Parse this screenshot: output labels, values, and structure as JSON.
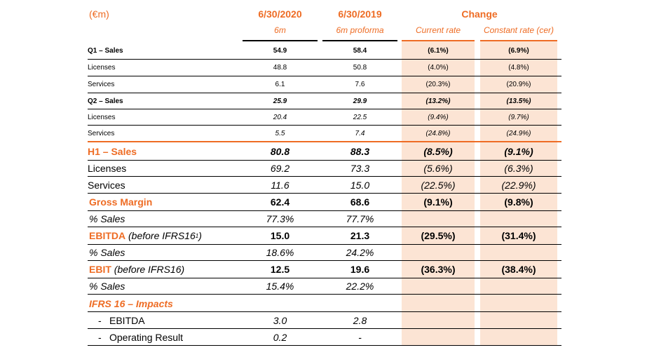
{
  "header": {
    "unit": "(€m)",
    "col1": "6/30/2020",
    "col2": "6/30/2019",
    "change": "Change",
    "col1_sub": "6m",
    "col2_sub": "6m proforma",
    "col3_sub": "Current rate",
    "col4_sub": "Constant rate (cer)"
  },
  "rows": [
    {
      "label": "Q1 – Sales",
      "c1": "54.9",
      "c2": "58.4",
      "c3": "(6.1%)",
      "c4": "(6.9%)"
    },
    {
      "label": "Licenses",
      "c1": "48.8",
      "c2": "50.8",
      "c3": "(4.0%)",
      "c4": "(4.8%)"
    },
    {
      "label": "Services",
      "c1": "6.1",
      "c2": "7.6",
      "c3": "(20.3%)",
      "c4": "(20.9%)"
    },
    {
      "label": "Q2 – Sales",
      "c1": "25.9",
      "c2": "29.9",
      "c3": "(13.2%)",
      "c4": "(13.5%)"
    },
    {
      "label": "Licenses",
      "c1": "20.4",
      "c2": "22.5",
      "c3": "(9.4%)",
      "c4": "(9.7%)"
    },
    {
      "label": "Services",
      "c1": "5.5",
      "c2": "7.4",
      "c3": "(24.8%)",
      "c4": "(24.9%)"
    },
    {
      "label": "H1 – Sales",
      "c1": "80.8",
      "c2": "88.3",
      "c3": "(8.5%)",
      "c4": "(9.1%)"
    },
    {
      "label": "Licenses",
      "c1": "69.2",
      "c2": "73.3",
      "c3": "(5.6%)",
      "c4": "(6.3%)"
    },
    {
      "label": "Services",
      "c1": "11.6",
      "c2": "15.0",
      "c3": "(22.5%)",
      "c4": "(22.9%)"
    },
    {
      "label": "Gross Margin",
      "c1": "62.4",
      "c2": "68.6",
      "c3": "(9.1%)",
      "c4": "(9.8%)"
    },
    {
      "label": "% Sales",
      "c1": "77.3%",
      "c2": "77.7%",
      "c3": "",
      "c4": ""
    },
    {
      "label": "EBITDA",
      "label_suffix": "(before IFRS16",
      "label_sup": "1",
      "label_close": ")",
      "c1": "15.0",
      "c2": "21.3",
      "c3": "(29.5%)",
      "c4": "(31.4%)"
    },
    {
      "label": "% Sales",
      "c1": "18.6%",
      "c2": "24.2%",
      "c3": "",
      "c4": ""
    },
    {
      "label": "EBIT",
      "label_suffix": "(before IFRS16)",
      "c1": "12.5",
      "c2": "19.6",
      "c3": "(36.3%)",
      "c4": "(38.4%)"
    },
    {
      "label": "% Sales",
      "c1": "15.4%",
      "c2": "22.2%",
      "c3": "",
      "c4": ""
    },
    {
      "label": "IFRS 16 – Impacts",
      "c1": "",
      "c2": "",
      "c3": "",
      "c4": ""
    },
    {
      "label": "EBITDA",
      "prefix": "-",
      "c1": "3.0",
      "c2": "2.8",
      "c3": "",
      "c4": ""
    },
    {
      "label": "Operating Result",
      "prefix": "-",
      "c1": "0.2",
      "c2": "-",
      "c3": "",
      "c4": ""
    }
  ]
}
